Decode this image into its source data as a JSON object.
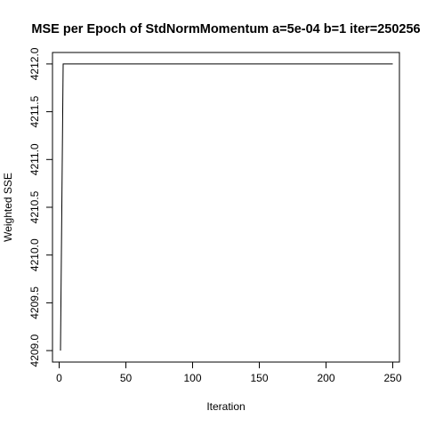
{
  "chart_data": {
    "type": "line",
    "title": "MSE per Epoch of StdNormMomentum a=5e-04 b=1 iter=250256",
    "xlabel": "Iteration",
    "ylabel": "Weighted SSE",
    "xlim": [
      -5,
      255
    ],
    "ylim": [
      4208.88,
      4212.12
    ],
    "xticks": [
      0,
      50,
      100,
      150,
      200,
      250
    ],
    "yticks": [
      4209.0,
      4209.5,
      4210.0,
      4210.5,
      4211.0,
      4211.5,
      4212.0
    ],
    "ytick_labels": [
      "4209.0",
      "4209.5",
      "4210.0",
      "4210.5",
      "4211.0",
      "4211.5",
      "4212.0"
    ],
    "grid": false,
    "series": [
      {
        "x": [
          1,
          3,
          250
        ],
        "y": [
          4209.0,
          4212.0,
          4212.0
        ]
      }
    ]
  }
}
